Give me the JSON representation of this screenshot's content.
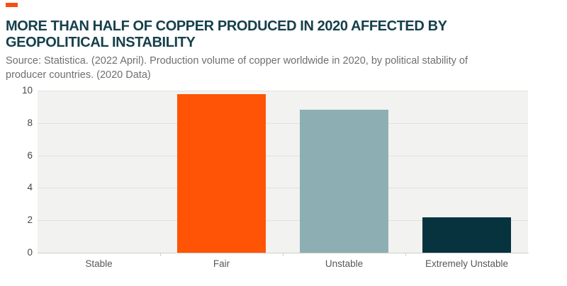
{
  "colors": {
    "accent": "#f84e10",
    "title_text": "#16404b",
    "source_text": "#6f6f6f",
    "y_axis_label": "#474747",
    "x_axis_label": "#57585b",
    "plot_bg": "#f2f2f0",
    "gridline": "#e1e1df",
    "axis_line": "#cfcfcd"
  },
  "header": {
    "title_line1": "MORE THAN HALF OF COPPER PRODUCED IN 2020 AFFECTED BY",
    "title_line2": "GEOPOLITICAL INSTABILITY",
    "source_line1": "Source: Statistica. (2022 April). Production volume of copper worldwide in 2020, by political stability of",
    "source_line2": "producer countries. (2020 Data)"
  },
  "chart_data": {
    "type": "bar",
    "title": "MORE THAN HALF OF COPPER PRODUCED IN 2020 AFFECTED BY GEOPOLITICAL INSTABILITY",
    "subtitle": "Source: Statistica. (2022 April). Production volume of copper worldwide in 2020, by political stability of producer countries. (2020 Data)",
    "categories": [
      "Stable",
      "Fair",
      "Unstable",
      "Extremely Unstable"
    ],
    "values": [
      0,
      9.8,
      8.8,
      2.2
    ],
    "bar_colors": [
      null,
      "#ff5405",
      "#8dafb3",
      "#07333f"
    ],
    "xlabel": "",
    "ylabel": "",
    "ylim": [
      0,
      10
    ],
    "yticks": [
      0,
      2,
      4,
      6,
      8,
      10
    ],
    "grid": true,
    "legend": false
  }
}
